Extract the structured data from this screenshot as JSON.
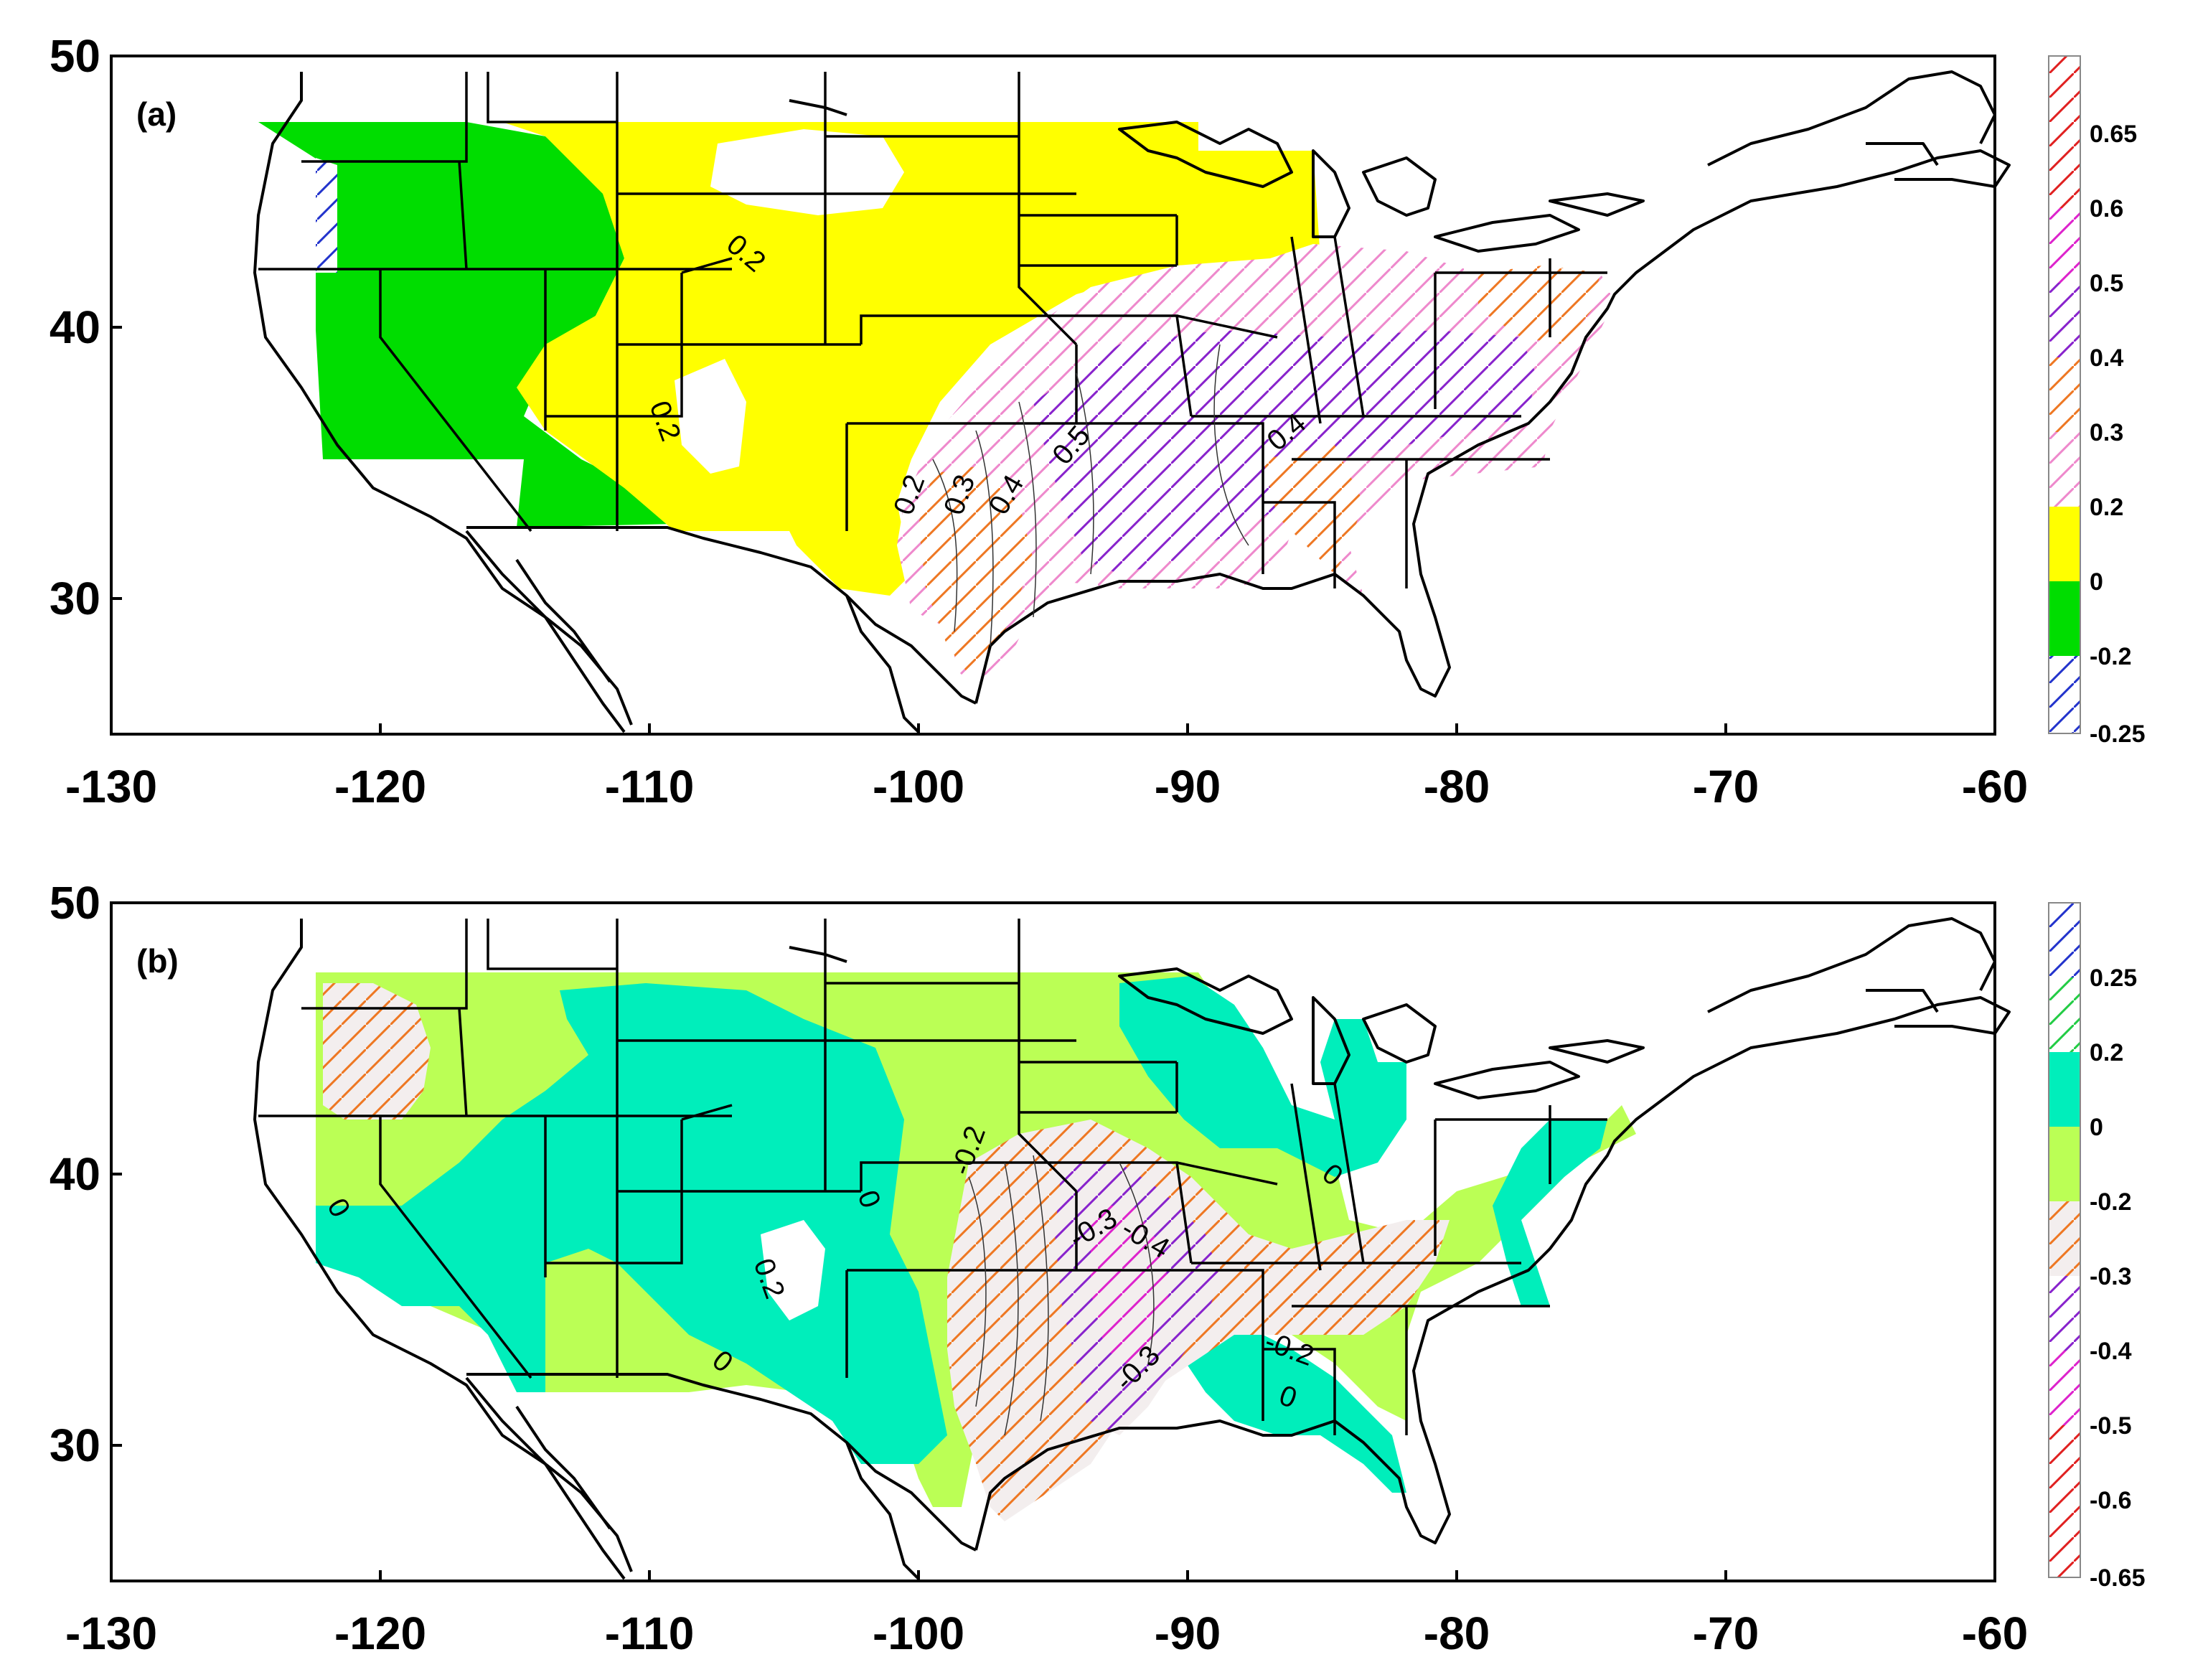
{
  "x_ticks": [
    "-130",
    "-120",
    "-110",
    "-100",
    "-90",
    "-80",
    "-70",
    "-60"
  ],
  "y_ticks": [
    "50",
    "40",
    "30"
  ],
  "panels": [
    {
      "id": "a",
      "label": "(a)",
      "contour_labels": [
        "0.2",
        "0.2",
        "0.2",
        "0.3",
        "0.4",
        "0.5",
        "0.4"
      ],
      "legend": [
        "0.65",
        "0.6",
        "0.5",
        "0.4",
        "0.3",
        "0.2",
        "0",
        "-0.2",
        "-0.25"
      ]
    },
    {
      "id": "b",
      "label": "(b)",
      "contour_labels": [
        "0",
        "0",
        "0.2",
        "0",
        "-0.2",
        "-0.3",
        "-0.4",
        "0",
        "-0.2",
        "-0.3",
        "0"
      ],
      "legend": [
        "0.25",
        "0.2",
        "0",
        "-0.2",
        "-0.3",
        "-0.4",
        "-0.5",
        "-0.6",
        "-0.65"
      ]
    }
  ],
  "colors": {
    "yellow": "#ffff00",
    "green": "#00dd00",
    "light_green": "#bbff55",
    "teal": "#00eebb",
    "hatch_red": "#e02020",
    "hatch_magenta": "#dd22cc",
    "hatch_purple": "#8822cc",
    "hatch_orange": "#ee7722",
    "hatch_pink": "#ee88cc",
    "hatch_blue": "#2233cc",
    "hatch_green": "#22cc44"
  }
}
